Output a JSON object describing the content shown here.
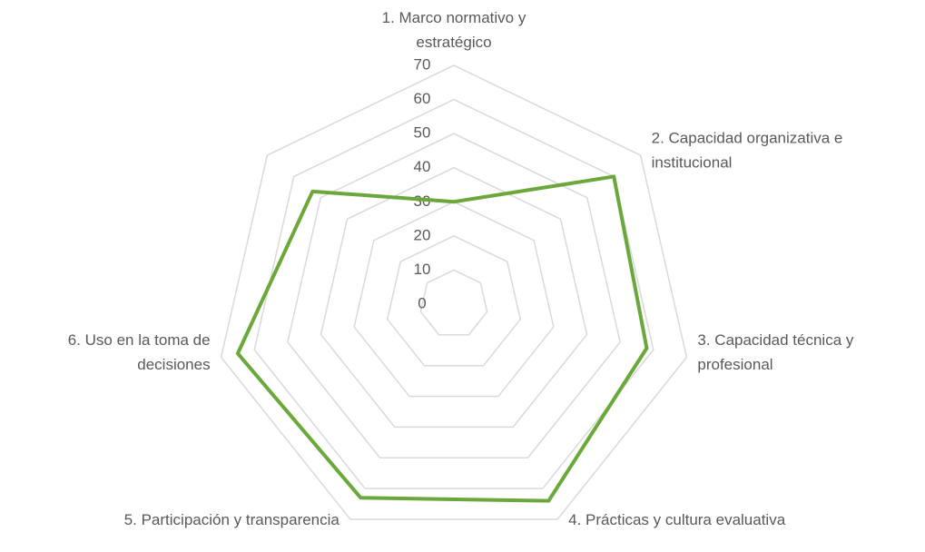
{
  "chart_data": {
    "type": "radar",
    "categories": [
      "1. Marco normativo y estratégico",
      "2. Capacidad organizativa e institucional",
      "3. Capacidad técnica y profesional",
      "4. Prácticas y cultura evaluativa",
      "5. Participación y transparencia",
      "6. Uso en la toma de decisiones",
      null
    ],
    "series": [
      {
        "name": null,
        "color": "#6aa83a",
        "values": [
          30,
          60,
          58,
          64,
          63,
          65,
          53
        ]
      }
    ],
    "ylim": [
      0,
      70
    ],
    "yticks": [
      0,
      10,
      20,
      30,
      40,
      50,
      60,
      70
    ],
    "grid": true
  }
}
